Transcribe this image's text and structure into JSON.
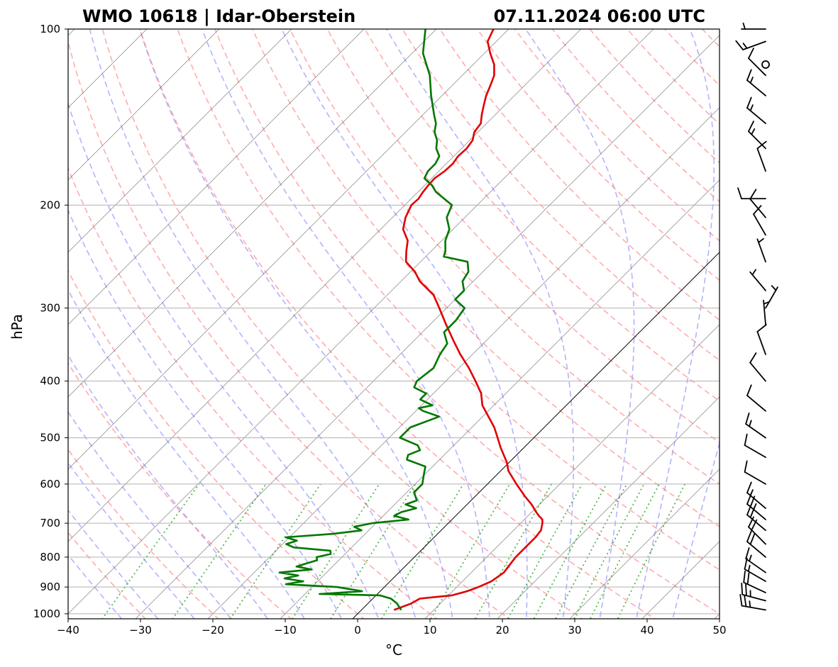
{
  "title_left": "WMO 10618 | Idar-Oberstein",
  "title_right": "07.11.2024 06:00 UTC",
  "chart_data": {
    "type": "line",
    "subtype": "skew-t log-p sounding",
    "xlabel": "°C",
    "ylabel": "hPa",
    "xlim": [
      -40,
      50
    ],
    "ylim": [
      1020,
      100
    ],
    "x_ticks": [
      -40,
      -30,
      -20,
      -10,
      0,
      10,
      20,
      30,
      40,
      50
    ],
    "x_tick_labels": [
      "−40",
      "−30",
      "−20",
      "−10",
      "0",
      "10",
      "20",
      "30",
      "40",
      "50"
    ],
    "y_ticks": [
      100,
      200,
      300,
      400,
      500,
      600,
      700,
      800,
      900,
      1000
    ],
    "y_tick_labels": [
      "100",
      "200",
      "300",
      "400",
      "500",
      "600",
      "700",
      "800",
      "900",
      "1000"
    ],
    "grid": true,
    "colors": {
      "temperature": "#e00000",
      "dewpoint": "#007700",
      "isotherm": "#555555",
      "dry_adiabat": "#ff8080",
      "moist_adiabat": "#8080ff",
      "mixing_ratio": "#33aa33",
      "zero_isotherm": "#000000",
      "grid": "#b0b0b0"
    },
    "series": [
      {
        "name": "Temperature",
        "pressure": [
          985,
          960,
          942,
          936,
          930,
          915,
          900,
          880,
          850,
          820,
          800,
          780,
          760,
          740,
          720,
          700,
          690,
          680,
          670,
          650,
          630,
          600,
          570,
          550,
          520,
          500,
          480,
          460,
          440,
          420,
          400,
          380,
          360,
          340,
          320,
          300,
          285,
          270,
          260,
          250,
          240,
          230,
          220,
          210,
          200,
          195,
          190,
          185,
          180,
          175,
          170,
          165,
          160,
          155,
          150,
          145,
          140,
          135,
          130,
          125,
          120,
          115,
          110,
          105,
          100
        ],
        "temperature": [
          4.5,
          6.0,
          6.5,
          8.5,
          10.5,
          12.0,
          13.0,
          14.0,
          14.5,
          14.2,
          14.0,
          14.0,
          14.0,
          14.0,
          13.8,
          13.0,
          12.5,
          11.5,
          10.6,
          8.9,
          6.9,
          4.0,
          1.1,
          -0.4,
          -3.2,
          -5.0,
          -6.9,
          -9.2,
          -11.6,
          -13.4,
          -15.9,
          -18.6,
          -21.7,
          -24.7,
          -27.8,
          -31.0,
          -33.6,
          -37.4,
          -39.4,
          -42.0,
          -43.4,
          -44.7,
          -46.9,
          -48.2,
          -49.1,
          -49.0,
          -49.3,
          -49.5,
          -49.6,
          -49.2,
          -49.1,
          -49.4,
          -49.3,
          -49.6,
          -50.5,
          -50.8,
          -51.9,
          -52.9,
          -53.9,
          -54.7,
          -55.6,
          -57.1,
          -59.2,
          -61.2,
          -62.1
        ]
      },
      {
        "name": "Dewpoint",
        "pressure": [
          985,
          960,
          942,
          930,
          925,
          915,
          900,
          890,
          880,
          870,
          860,
          850,
          840,
          830,
          820,
          810,
          800,
          790,
          780,
          770,
          760,
          750,
          740,
          730,
          720,
          710,
          700,
          690,
          680,
          670,
          660,
          650,
          640,
          620,
          600,
          580,
          560,
          545,
          535,
          525,
          515,
          500,
          480,
          460,
          450,
          445,
          440,
          430,
          420,
          410,
          400,
          380,
          360,
          345,
          330,
          315,
          300,
          290,
          280,
          270,
          260,
          250,
          245,
          240,
          230,
          220,
          210,
          200,
          190,
          185,
          180,
          175,
          170,
          165,
          160,
          155,
          150,
          145,
          140,
          130,
          120,
          110,
          100
        ],
        "dewpoint": [
          5.5,
          4.0,
          2.5,
          0.5,
          -8.0,
          -2.5,
          -6.5,
          -14.0,
          -12.0,
          -15.0,
          -13.5,
          -16.5,
          -12.5,
          -15.0,
          -14.0,
          -13.0,
          -13.5,
          -12.0,
          -12.5,
          -18.0,
          -19.5,
          -18.5,
          -20.5,
          -14.5,
          -11.0,
          -12.5,
          -10.5,
          -6.0,
          -8.5,
          -8.0,
          -6.5,
          -8.5,
          -7.5,
          -9.0,
          -9.0,
          -10.0,
          -11.0,
          -14.5,
          -15.0,
          -14.0,
          -15.0,
          -18.5,
          -18.5,
          -16.0,
          -19.0,
          -20.0,
          -18.5,
          -21.0,
          -21.0,
          -23.5,
          -24.0,
          -23.5,
          -24.5,
          -25.0,
          -27.0,
          -27.0,
          -27.5,
          -30.0,
          -30.0,
          -31.5,
          -32.0,
          -33.5,
          -37.5,
          -38.0,
          -39.5,
          -40.5,
          -42.5,
          -43.5,
          -47.5,
          -49.0,
          -51.0,
          -51.5,
          -51.5,
          -52.0,
          -53.5,
          -54.5,
          -56.0,
          -57.0,
          -58.5,
          -61.5,
          -64.5,
          -68.5,
          -71.5
        ]
      }
    ],
    "wind_barbs": [
      {
        "pressure": 985,
        "speed_kt": 25,
        "direction_deg": 280
      },
      {
        "pressure": 950,
        "speed_kt": 25,
        "direction_deg": 285
      },
      {
        "pressure": 920,
        "speed_kt": 20,
        "direction_deg": 295
      },
      {
        "pressure": 880,
        "speed_kt": 15,
        "direction_deg": 300
      },
      {
        "pressure": 850,
        "speed_kt": 15,
        "direction_deg": 305
      },
      {
        "pressure": 800,
        "speed_kt": 20,
        "direction_deg": 310
      },
      {
        "pressure": 760,
        "speed_kt": 20,
        "direction_deg": 315
      },
      {
        "pressure": 720,
        "speed_kt": 20,
        "direction_deg": 310
      },
      {
        "pressure": 690,
        "speed_kt": 25,
        "direction_deg": 310
      },
      {
        "pressure": 660,
        "speed_kt": 15,
        "direction_deg": 310
      },
      {
        "pressure": 600,
        "speed_kt": 10,
        "direction_deg": 300
      },
      {
        "pressure": 540,
        "speed_kt": 10,
        "direction_deg": 300
      },
      {
        "pressure": 500,
        "speed_kt": 15,
        "direction_deg": 305
      },
      {
        "pressure": 450,
        "speed_kt": 10,
        "direction_deg": 310
      },
      {
        "pressure": 400,
        "speed_kt": 10,
        "direction_deg": 320
      },
      {
        "pressure": 360,
        "speed_kt": 10,
        "direction_deg": 340
      },
      {
        "pressure": 320,
        "speed_kt": 5,
        "direction_deg": 355
      },
      {
        "pressure": 300,
        "speed_kt": 5,
        "direction_deg": 30
      },
      {
        "pressure": 280,
        "speed_kt": 5,
        "direction_deg": 320
      },
      {
        "pressure": 250,
        "speed_kt": 5,
        "direction_deg": 340
      },
      {
        "pressure": 225,
        "speed_kt": 10,
        "direction_deg": 330
      },
      {
        "pressure": 210,
        "speed_kt": 10,
        "direction_deg": 320
      },
      {
        "pressure": 195,
        "speed_kt": 10,
        "direction_deg": 270
      },
      {
        "pressure": 175,
        "speed_kt": 10,
        "direction_deg": 340
      },
      {
        "pressure": 160,
        "speed_kt": 15,
        "direction_deg": 315
      },
      {
        "pressure": 145,
        "speed_kt": 15,
        "direction_deg": 310
      },
      {
        "pressure": 130,
        "speed_kt": 15,
        "direction_deg": 310
      },
      {
        "pressure": 120,
        "speed_kt": 10,
        "direction_deg": 315
      },
      {
        "pressure": 115,
        "speed_kt": 0,
        "direction_deg": 0
      },
      {
        "pressure": 105,
        "speed_kt": 15,
        "direction_deg": 250
      },
      {
        "pressure": 100,
        "speed_kt": 5,
        "direction_deg": 270
      }
    ]
  }
}
